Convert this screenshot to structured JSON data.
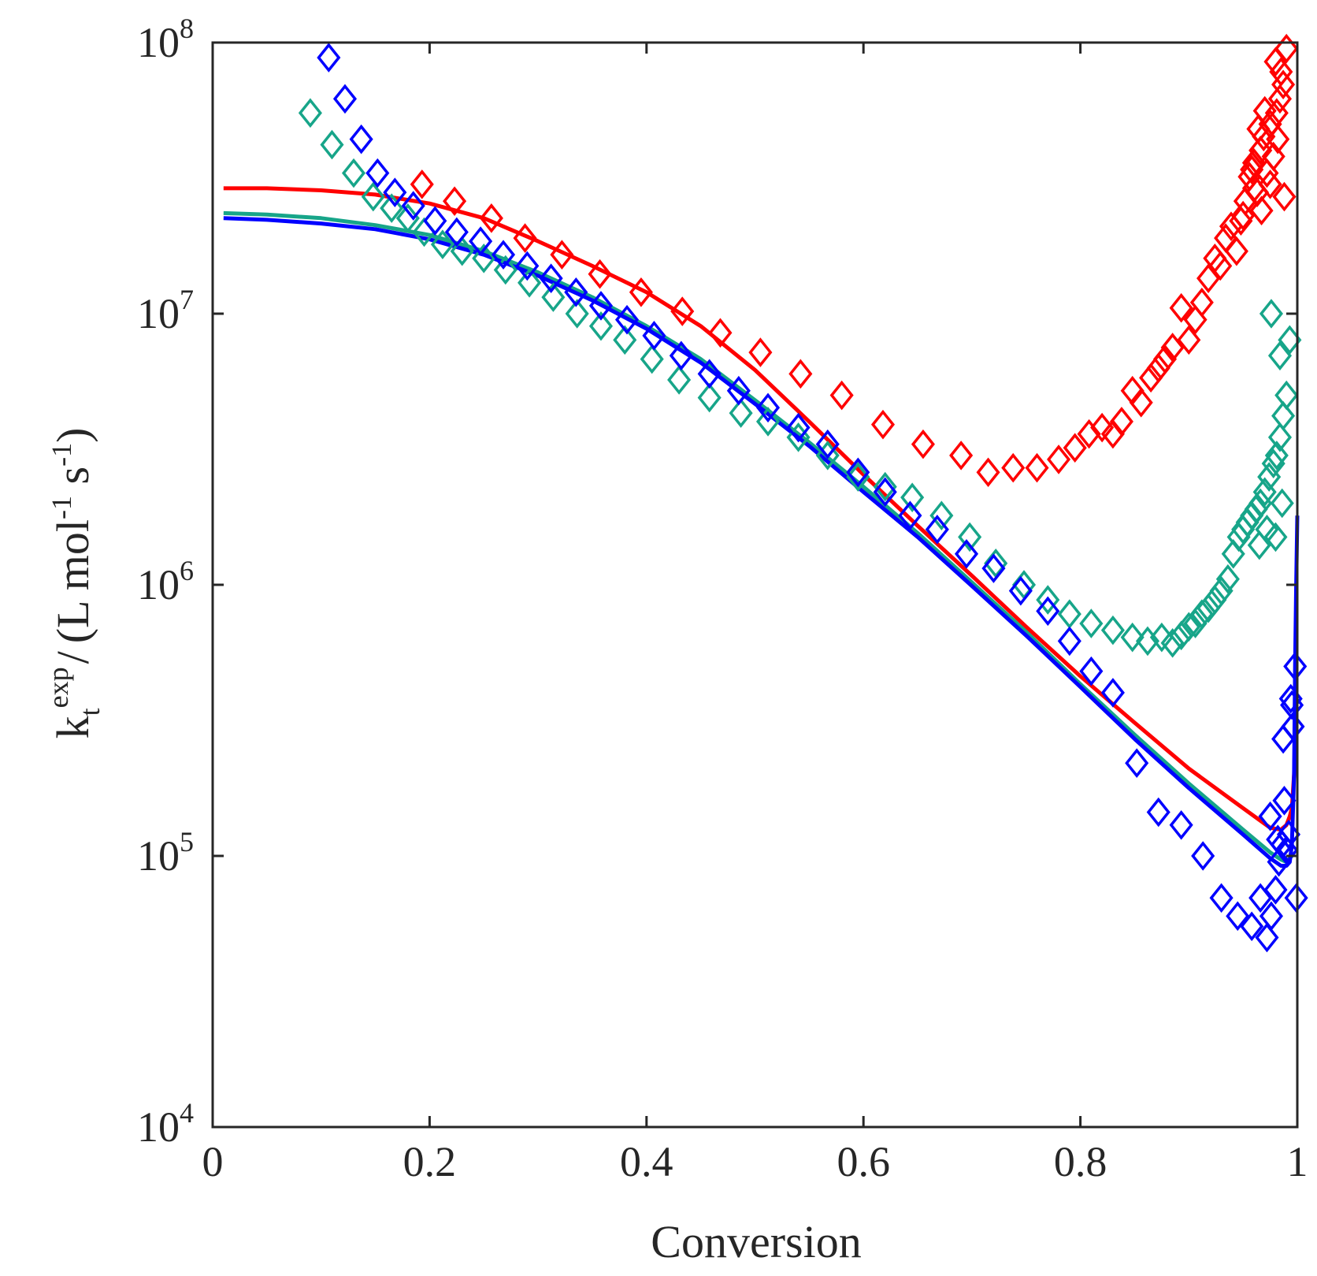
{
  "chart_data": {
    "type": "scatter",
    "title": "",
    "xlabel": "Conversion",
    "ylabel": {
      "k": "k",
      "sub": "t",
      "sup": "exp",
      "slash": "/",
      "unit_open": "(L mol",
      "unit_sup1": "-1",
      "unit_mid": " s",
      "unit_sup2": "-1",
      "unit_close": ")"
    },
    "xlim": [
      0,
      1
    ],
    "ylim": [
      10000,
      100000000
    ],
    "yscale": "log",
    "grid": false,
    "x_ticks": [
      {
        "value": 0,
        "label": "0"
      },
      {
        "value": 0.2,
        "label": "0.2"
      },
      {
        "value": 0.4,
        "label": "0.4"
      },
      {
        "value": 0.6,
        "label": "0.6"
      },
      {
        "value": 0.8,
        "label": "0.8"
      },
      {
        "value": 1,
        "label": "1"
      }
    ],
    "y_ticks": [
      {
        "value": 10000,
        "base": "10",
        "exp": "4"
      },
      {
        "value": 100000,
        "base": "10",
        "exp": "5"
      },
      {
        "value": 1000000,
        "base": "10",
        "exp": "6"
      },
      {
        "value": 10000000,
        "base": "10",
        "exp": "7"
      },
      {
        "value": 100000000,
        "base": "10",
        "exp": "8"
      }
    ],
    "series": [
      {
        "name": "red-experimental",
        "kind": "markers",
        "marker": "diamond",
        "color": "#ff0000",
        "x": [
          0.193,
          0.223,
          0.257,
          0.288,
          0.322,
          0.357,
          0.395,
          0.433,
          0.468,
          0.505,
          0.542,
          0.58,
          0.618,
          0.655,
          0.69,
          0.715,
          0.738,
          0.76,
          0.78,
          0.795,
          0.808,
          0.82,
          0.83,
          0.838,
          0.848,
          0.856,
          0.865,
          0.872,
          0.878,
          0.885,
          0.893,
          0.9,
          0.906,
          0.912,
          0.918,
          0.924,
          0.929,
          0.934,
          0.939,
          0.944,
          0.948,
          0.952,
          0.956,
          0.96,
          0.963,
          0.966,
          0.969,
          0.972,
          0.975,
          0.978,
          0.981,
          0.984,
          0.987,
          0.99,
          0.967,
          0.975,
          0.982,
          0.988,
          0.96,
          0.97,
          0.98,
          0.985,
          0.95,
          0.958,
          0.964
        ],
        "y": [
          30000000,
          26000000,
          22500000,
          19000000,
          16500000,
          14000000,
          12000000,
          10200000,
          8500000,
          7200000,
          6000000,
          5000000,
          3900000,
          3300000,
          3000000,
          2600000,
          2700000,
          2700000,
          2900000,
          3200000,
          3600000,
          3800000,
          3600000,
          4000000,
          5200000,
          4700000,
          5800000,
          6300000,
          6800000,
          7500000,
          10500000,
          8000000,
          9500000,
          11000000,
          13500000,
          16000000,
          15000000,
          19000000,
          21000000,
          17000000,
          22000000,
          26000000,
          32000000,
          36000000,
          28000000,
          40000000,
          45000000,
          33000000,
          50000000,
          38000000,
          55000000,
          62000000,
          70000000,
          95000000,
          24000000,
          30000000,
          44000000,
          27000000,
          29000000,
          56000000,
          85000000,
          78000000,
          23000000,
          34000000,
          48000000
        ]
      },
      {
        "name": "green-experimental",
        "kind": "markers",
        "marker": "diamond",
        "color": "#17a589",
        "x": [
          0.09,
          0.11,
          0.13,
          0.148,
          0.165,
          0.18,
          0.195,
          0.212,
          0.23,
          0.25,
          0.27,
          0.292,
          0.314,
          0.336,
          0.358,
          0.38,
          0.405,
          0.43,
          0.458,
          0.487,
          0.512,
          0.54,
          0.567,
          0.595,
          0.62,
          0.645,
          0.672,
          0.698,
          0.722,
          0.748,
          0.77,
          0.79,
          0.81,
          0.83,
          0.848,
          0.862,
          0.875,
          0.885,
          0.893,
          0.9,
          0.906,
          0.912,
          0.918,
          0.924,
          0.93,
          0.936,
          0.941,
          0.946,
          0.95,
          0.954,
          0.958,
          0.962,
          0.966,
          0.97,
          0.974,
          0.978,
          0.981,
          0.984,
          0.987,
          0.99,
          0.993,
          0.976,
          0.984,
          0.972,
          0.98,
          0.965,
          0.986
        ],
        "y": [
          55000000,
          42000000,
          33000000,
          27000000,
          24500000,
          22500000,
          20000000,
          18000000,
          17000000,
          16000000,
          14500000,
          13000000,
          11500000,
          10000000,
          9000000,
          8000000,
          6800000,
          5700000,
          4900000,
          4300000,
          4000000,
          3500000,
          3000000,
          2500000,
          2300000,
          2100000,
          1800000,
          1500000,
          1200000,
          1000000,
          880000,
          780000,
          720000,
          680000,
          640000,
          620000,
          640000,
          610000,
          650000,
          700000,
          720000,
          780000,
          820000,
          880000,
          950000,
          1050000,
          1300000,
          1500000,
          1600000,
          1700000,
          1800000,
          1900000,
          2000000,
          2200000,
          2500000,
          2800000,
          3000000,
          3500000,
          4200000,
          5000000,
          8000000,
          10000000,
          7000000,
          1600000,
          1500000,
          1400000,
          2000000
        ]
      },
      {
        "name": "blue-experimental",
        "kind": "markers",
        "marker": "diamond",
        "color": "#0000ff",
        "x": [
          0.107,
          0.122,
          0.137,
          0.152,
          0.168,
          0.185,
          0.205,
          0.225,
          0.247,
          0.268,
          0.29,
          0.312,
          0.335,
          0.358,
          0.382,
          0.407,
          0.432,
          0.458,
          0.485,
          0.512,
          0.54,
          0.567,
          0.595,
          0.62,
          0.643,
          0.668,
          0.695,
          0.72,
          0.745,
          0.77,
          0.79,
          0.81,
          0.83,
          0.852,
          0.872,
          0.893,
          0.913,
          0.93,
          0.945,
          0.958,
          0.966,
          0.972,
          0.976,
          0.98,
          0.983,
          0.986,
          0.988,
          0.99,
          0.992,
          0.994,
          0.996,
          0.998,
          0.999,
          0.975,
          0.982,
          0.987,
          0.995
        ],
        "y": [
          88000000,
          62000000,
          44000000,
          33000000,
          28000000,
          25000000,
          22000000,
          20000000,
          18500000,
          16500000,
          15000000,
          13500000,
          12000000,
          10700000,
          9500000,
          8300000,
          7000000,
          6000000,
          5200000,
          4500000,
          3800000,
          3300000,
          2600000,
          2200000,
          1800000,
          1600000,
          1300000,
          1150000,
          950000,
          800000,
          620000,
          480000,
          400000,
          220000,
          145000,
          130000,
          100000,
          70000,
          60000,
          55000,
          70000,
          50000,
          60000,
          75000,
          95000,
          110000,
          160000,
          105000,
          120000,
          380000,
          300000,
          500000,
          70000,
          140000,
          115000,
          270000,
          360000
        ]
      },
      {
        "name": "red-model",
        "kind": "line",
        "color": "#ff0000",
        "x": [
          0.01,
          0.05,
          0.1,
          0.15,
          0.2,
          0.25,
          0.3,
          0.35,
          0.4,
          0.45,
          0.5,
          0.55,
          0.6,
          0.65,
          0.7,
          0.75,
          0.8,
          0.85,
          0.9,
          0.95,
          0.975,
          0.985,
          0.99,
          0.993,
          0.995,
          0.997,
          0.999
        ],
        "y": [
          29000000,
          29000000,
          28500000,
          27500000,
          25500000,
          22500000,
          18500000,
          15000000,
          12000000,
          9000000,
          6200000,
          4000000,
          2550000,
          1650000,
          1080000,
          700000,
          460000,
          310000,
          210000,
          150000,
          127000,
          125000,
          130000,
          140000,
          150000,
          200000,
          400000
        ]
      },
      {
        "name": "green-model",
        "kind": "line",
        "color": "#17a589",
        "x": [
          0.01,
          0.05,
          0.1,
          0.15,
          0.2,
          0.25,
          0.3,
          0.35,
          0.4,
          0.45,
          0.5,
          0.55,
          0.6,
          0.65,
          0.7,
          0.75,
          0.8,
          0.85,
          0.9,
          0.95,
          0.975,
          0.985,
          0.99,
          0.995
        ],
        "y": [
          23500000,
          23200000,
          22500000,
          21200000,
          19500000,
          17000000,
          14200000,
          11500000,
          9000000,
          6800000,
          4800000,
          3350000,
          2300000,
          1550000,
          1020000,
          670000,
          430000,
          280000,
          185000,
          125000,
          103000,
          97000,
          95000,
          100000
        ]
      },
      {
        "name": "blue-model",
        "kind": "line",
        "color": "#0000ff",
        "x": [
          0.01,
          0.05,
          0.1,
          0.15,
          0.2,
          0.25,
          0.3,
          0.35,
          0.4,
          0.45,
          0.5,
          0.55,
          0.6,
          0.65,
          0.7,
          0.75,
          0.8,
          0.85,
          0.9,
          0.95,
          0.975,
          0.985,
          0.99,
          0.993,
          0.995,
          0.997,
          0.998,
          0.999,
          1.0
        ],
        "y": [
          22500000,
          22200000,
          21500000,
          20500000,
          18800000,
          16500000,
          13800000,
          11200000,
          8800000,
          6600000,
          4650000,
          3250000,
          2200000,
          1500000,
          990000,
          650000,
          420000,
          270000,
          178000,
          120000,
          98000,
          92000,
          92000,
          95000,
          110000,
          200000,
          500000,
          1000000,
          1800000
        ]
      }
    ]
  }
}
